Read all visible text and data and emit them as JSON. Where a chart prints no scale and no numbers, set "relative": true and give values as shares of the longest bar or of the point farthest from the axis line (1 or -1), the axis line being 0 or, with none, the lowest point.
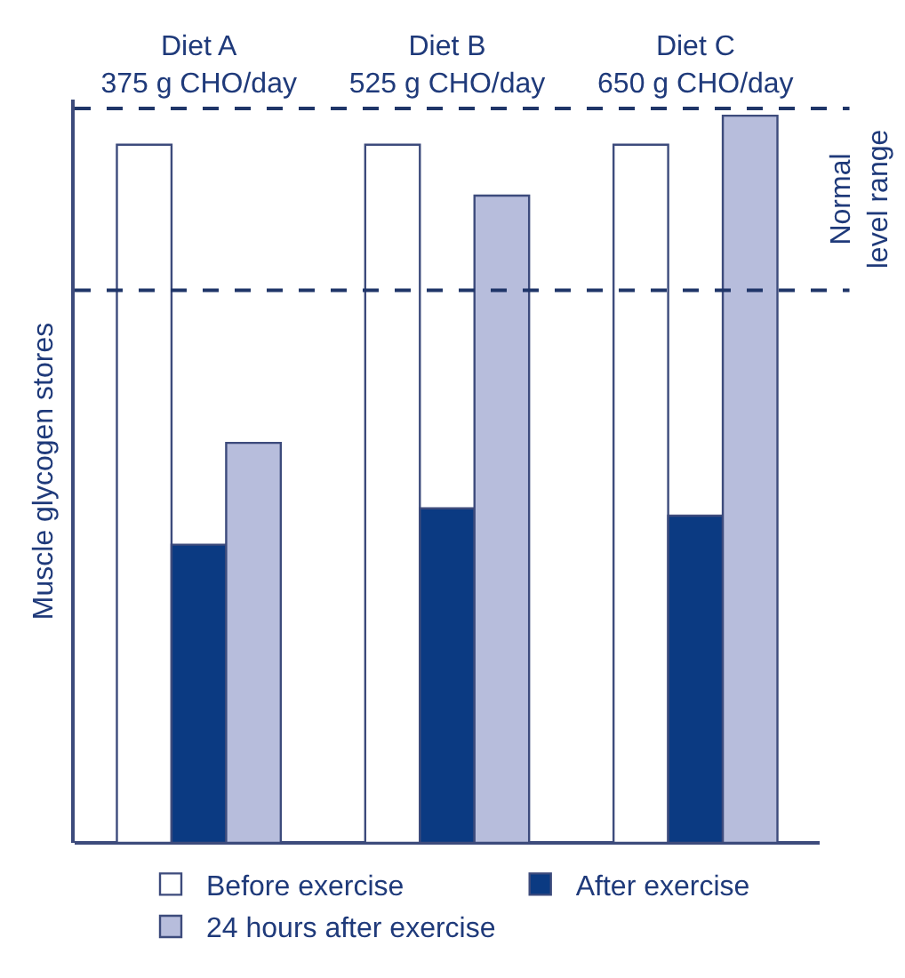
{
  "chart_data": {
    "type": "bar",
    "relative": true,
    "categories": [
      "Diet A\n375 g CHO/day",
      "Diet B\n525 g CHO/day",
      "Diet C\n650 g CHO/day"
    ],
    "series": [
      {
        "name": "Before exercise",
        "color": "#ffffff",
        "values": [
          0.96,
          0.96,
          0.96
        ]
      },
      {
        "name": "After exercise",
        "color": "#0b3a82",
        "values": [
          0.41,
          0.46,
          0.45
        ]
      },
      {
        "name": "24 hours after exercise",
        "color": "#b7bddc",
        "values": [
          0.55,
          0.89,
          1.0
        ]
      }
    ],
    "ylabel": "Muscle glycogen stores",
    "ref_lines": [
      {
        "axis": "y",
        "value": 0.76,
        "color": "#1f3568",
        "line_style": "dashed"
      },
      {
        "axis": "y",
        "value": 1.01,
        "color": "#1f3568",
        "line_style": "dashed"
      }
    ],
    "annotations": [
      "Normal\nlevel range"
    ],
    "legend": "bottom"
  }
}
